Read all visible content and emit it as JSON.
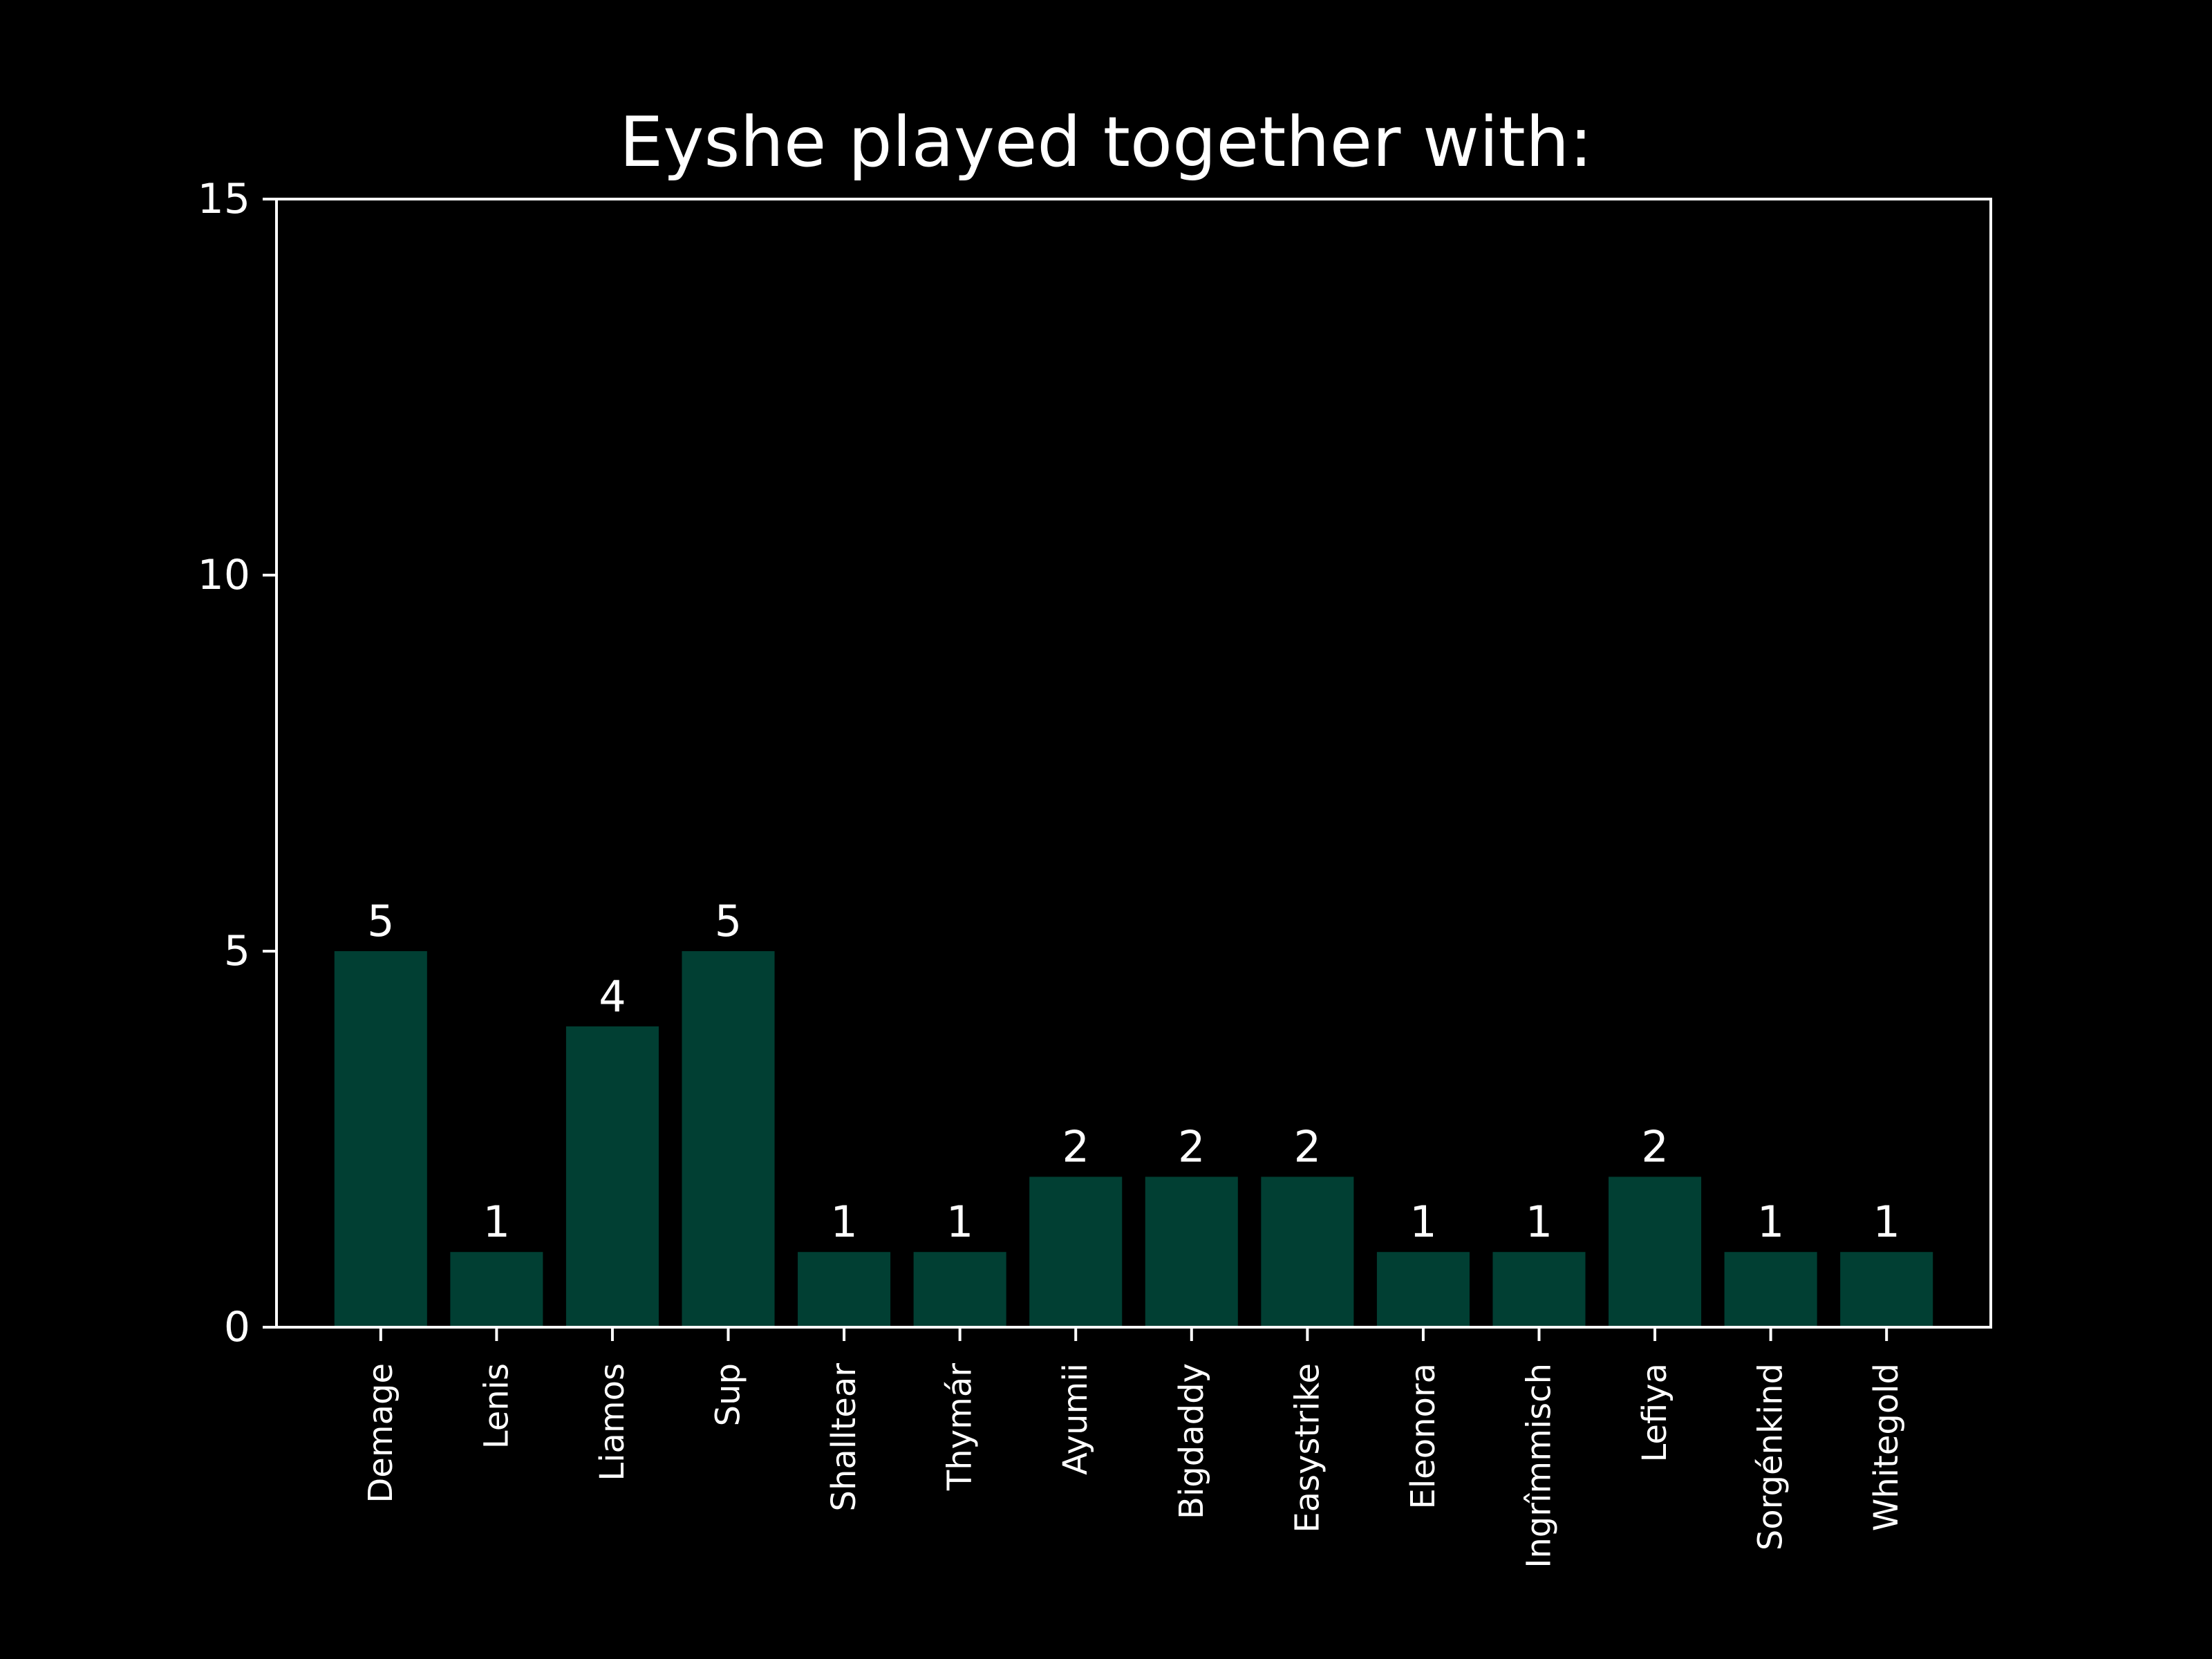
{
  "chart_data": {
    "type": "bar",
    "title": "Eyshe played together with:",
    "xlabel": "",
    "ylabel": "",
    "categories": [
      "Demage",
      "Lenis",
      "Liamos",
      "Sup",
      "Shalltear",
      "Thymár",
      "Ayumii",
      "Bigdaddy",
      "Easystrike",
      "Eleonora",
      "Ingrîmmisch",
      "Lefiya",
      "Sorgénkind",
      "Whitegold"
    ],
    "values": [
      5,
      1,
      4,
      5,
      1,
      1,
      2,
      2,
      2,
      1,
      1,
      2,
      1,
      1
    ],
    "data_labels": [
      "5",
      "1",
      "4",
      "5",
      "1",
      "1",
      "2",
      "2",
      "2",
      "1",
      "1",
      "2",
      "1",
      "1"
    ],
    "ylim": [
      0,
      15
    ],
    "yticks": [
      0,
      5,
      10,
      15
    ],
    "grid": false,
    "legend": false,
    "colors": {
      "background": "#000000",
      "bar": "#013f33",
      "axis": "#ffffff",
      "text": "#ffffff"
    }
  }
}
